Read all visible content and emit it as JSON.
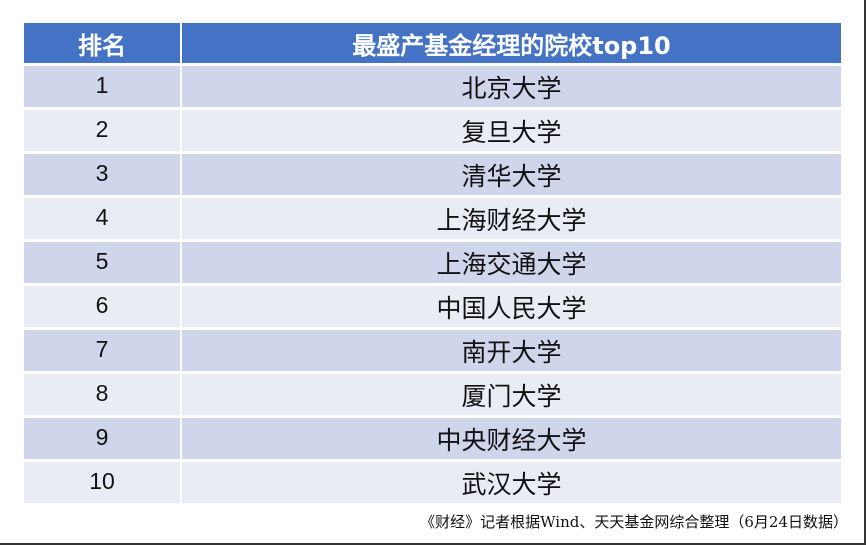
{
  "table": {
    "headers": [
      "排名",
      "最盛产基金经理的院校top10"
    ],
    "rows": [
      {
        "rank": "1",
        "school": "北京大学"
      },
      {
        "rank": "2",
        "school": "复旦大学"
      },
      {
        "rank": "3",
        "school": "清华大学"
      },
      {
        "rank": "4",
        "school": "上海财经大学"
      },
      {
        "rank": "5",
        "school": "上海交通大学"
      },
      {
        "rank": "6",
        "school": "中国人民大学"
      },
      {
        "rank": "7",
        "school": "南开大学"
      },
      {
        "rank": "8",
        "school": "厦门大学"
      },
      {
        "rank": "9",
        "school": "中央财经大学"
      },
      {
        "rank": "10",
        "school": "武汉大学"
      }
    ]
  },
  "caption": "《财经》记者根据Wind、天天基金网综合整理（6月24日数据）",
  "colors": {
    "header": "#4472c4",
    "row_odd": "#cfd5ea",
    "row_even": "#e9ebf5"
  }
}
